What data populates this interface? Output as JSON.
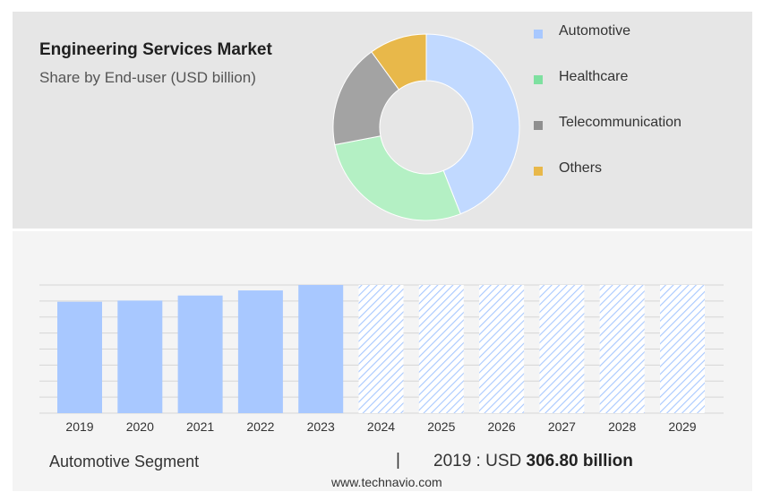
{
  "header": {
    "title": "Engineering Services Market",
    "subtitle": "Share by End-user (USD billion)"
  },
  "legend": [
    {
      "label": "Automotive",
      "color": "#a8c8ff"
    },
    {
      "label": "Healthcare",
      "color": "#7ee0a0"
    },
    {
      "label": "Telecommunication",
      "color": "#8f8f8f"
    },
    {
      "label": "Others",
      "color": "#e8b84a"
    }
  ],
  "footer": {
    "segment": "Automotive Segment",
    "separator": "|",
    "year_label": "2019 : USD",
    "value": "306.80 billion",
    "source": "www.technavio.com"
  },
  "chart_data": [
    {
      "type": "pie",
      "variant": "donut",
      "labels": [
        "Automotive",
        "Healthcare",
        "Telecommunication",
        "Others"
      ],
      "values": [
        44,
        28,
        18,
        10
      ],
      "colors": [
        "#c1d9ff",
        "#b4f0c4",
        "#a3a3a3",
        "#e8b84a"
      ]
    },
    {
      "type": "bar",
      "categories": [
        "2019",
        "2020",
        "2021",
        "2022",
        "2023",
        "2024",
        "2025",
        "2026",
        "2027",
        "2028",
        "2029"
      ],
      "values": [
        306.8,
        310,
        324,
        338,
        353,
        353,
        353,
        353,
        353,
        353,
        353
      ],
      "forecast_from": "2024",
      "color": "#a8c8ff",
      "grid": true
    }
  ]
}
